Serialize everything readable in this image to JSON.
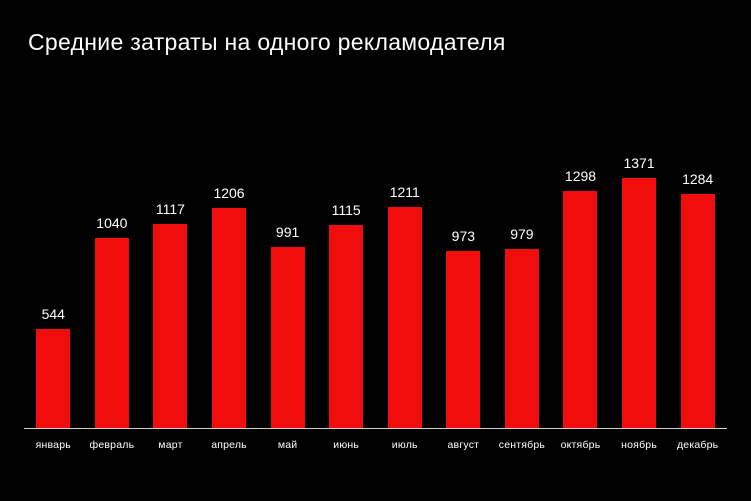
{
  "title": "Средние затраты на одного рекламодателя",
  "chart_data": {
    "type": "bar",
    "title": "Средние затраты на одного рекламодателя",
    "categories": [
      "январь",
      "февраль",
      "март",
      "апрель",
      "май",
      "июнь",
      "июль",
      "август",
      "сентябрь",
      "октябрь",
      "ноябрь",
      "декабрь"
    ],
    "values": [
      544,
      1040,
      1117,
      1206,
      991,
      1115,
      1211,
      973,
      979,
      1298,
      1371,
      1284
    ],
    "xlabel": "",
    "ylabel": "",
    "ylim": [
      0,
      1400
    ],
    "grid": false,
    "legend": "none",
    "data_labels": true,
    "bar_color": "#f20d0d",
    "background_color": "#000000",
    "text_color": "#ffffff",
    "axis_line_color": "#cfcfcf"
  }
}
